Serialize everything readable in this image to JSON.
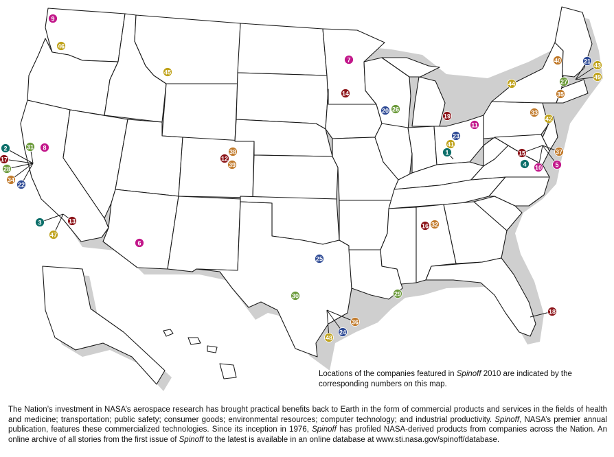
{
  "colors": {
    "magenta": "#c2178a",
    "olive": "#bfa21a",
    "darkred": "#8c1419",
    "orange": "#c17a2b",
    "green": "#6b9a3a",
    "teal": "#0d6f6a",
    "navy": "#2e4a95"
  },
  "markers": [
    {
      "n": "9",
      "color": "magenta"
    },
    {
      "n": "46",
      "color": "olive"
    },
    {
      "n": "45",
      "color": "olive"
    },
    {
      "n": "7",
      "color": "magenta"
    },
    {
      "n": "14",
      "color": "darkred"
    },
    {
      "n": "20",
      "color": "navy"
    },
    {
      "n": "26",
      "color": "green"
    },
    {
      "n": "19",
      "color": "darkred"
    },
    {
      "n": "11",
      "color": "magenta"
    },
    {
      "n": "23",
      "color": "navy"
    },
    {
      "n": "41",
      "color": "olive"
    },
    {
      "n": "1",
      "color": "teal"
    },
    {
      "n": "44",
      "color": "olive"
    },
    {
      "n": "40",
      "color": "orange"
    },
    {
      "n": "21",
      "color": "navy"
    },
    {
      "n": "43",
      "color": "olive"
    },
    {
      "n": "49",
      "color": "olive"
    },
    {
      "n": "27",
      "color": "green"
    },
    {
      "n": "35",
      "color": "orange"
    },
    {
      "n": "33",
      "color": "orange"
    },
    {
      "n": "42",
      "color": "olive"
    },
    {
      "n": "15",
      "color": "darkred"
    },
    {
      "n": "37",
      "color": "orange"
    },
    {
      "n": "4",
      "color": "teal"
    },
    {
      "n": "10",
      "color": "magenta"
    },
    {
      "n": "5",
      "color": "magenta"
    },
    {
      "n": "38",
      "color": "orange"
    },
    {
      "n": "12",
      "color": "darkred"
    },
    {
      "n": "39",
      "color": "orange"
    },
    {
      "n": "2",
      "color": "teal"
    },
    {
      "n": "31",
      "color": "green"
    },
    {
      "n": "8",
      "color": "magenta"
    },
    {
      "n": "17",
      "color": "darkred"
    },
    {
      "n": "28",
      "color": "green"
    },
    {
      "n": "34",
      "color": "orange"
    },
    {
      "n": "22",
      "color": "navy"
    },
    {
      "n": "3",
      "color": "teal"
    },
    {
      "n": "13",
      "color": "darkred"
    },
    {
      "n": "47",
      "color": "olive"
    },
    {
      "n": "6",
      "color": "magenta"
    },
    {
      "n": "25",
      "color": "navy"
    },
    {
      "n": "30",
      "color": "green"
    },
    {
      "n": "29",
      "color": "green"
    },
    {
      "n": "16",
      "color": "darkred"
    },
    {
      "n": "32",
      "color": "orange"
    },
    {
      "n": "36",
      "color": "orange"
    },
    {
      "n": "24",
      "color": "navy"
    },
    {
      "n": "48",
      "color": "olive"
    },
    {
      "n": "18",
      "color": "darkred"
    }
  ],
  "caption": {
    "text_before": "Locations of the companies featured in ",
    "emphasis": "Spinoff",
    "text_after": " 2010 are indicated by the corresponding numbers on this map."
  },
  "footer": {
    "p1": "The Nation’s investment in NASA’s aerospace research has brought practical benefits back to Earth in the form of commercial products and services in the fields of health and medicine; transportation; public safety; consumer goods; environmental resources; computer technology; and industrial productivity. ",
    "em1": "Spinoff",
    "p2": ", NASA’s premier annual publication, features these commercialized technologies. Since its inception in 1976, ",
    "em2": "Spinoff",
    "p3": " has profiled NASA-derived products from companies across the Nation. An online archive of all stories from the first issue of ",
    "em3": "Spinoff",
    "p4": " to the latest is available in an online database at www.sti.nasa.gov/spinoff/database."
  }
}
